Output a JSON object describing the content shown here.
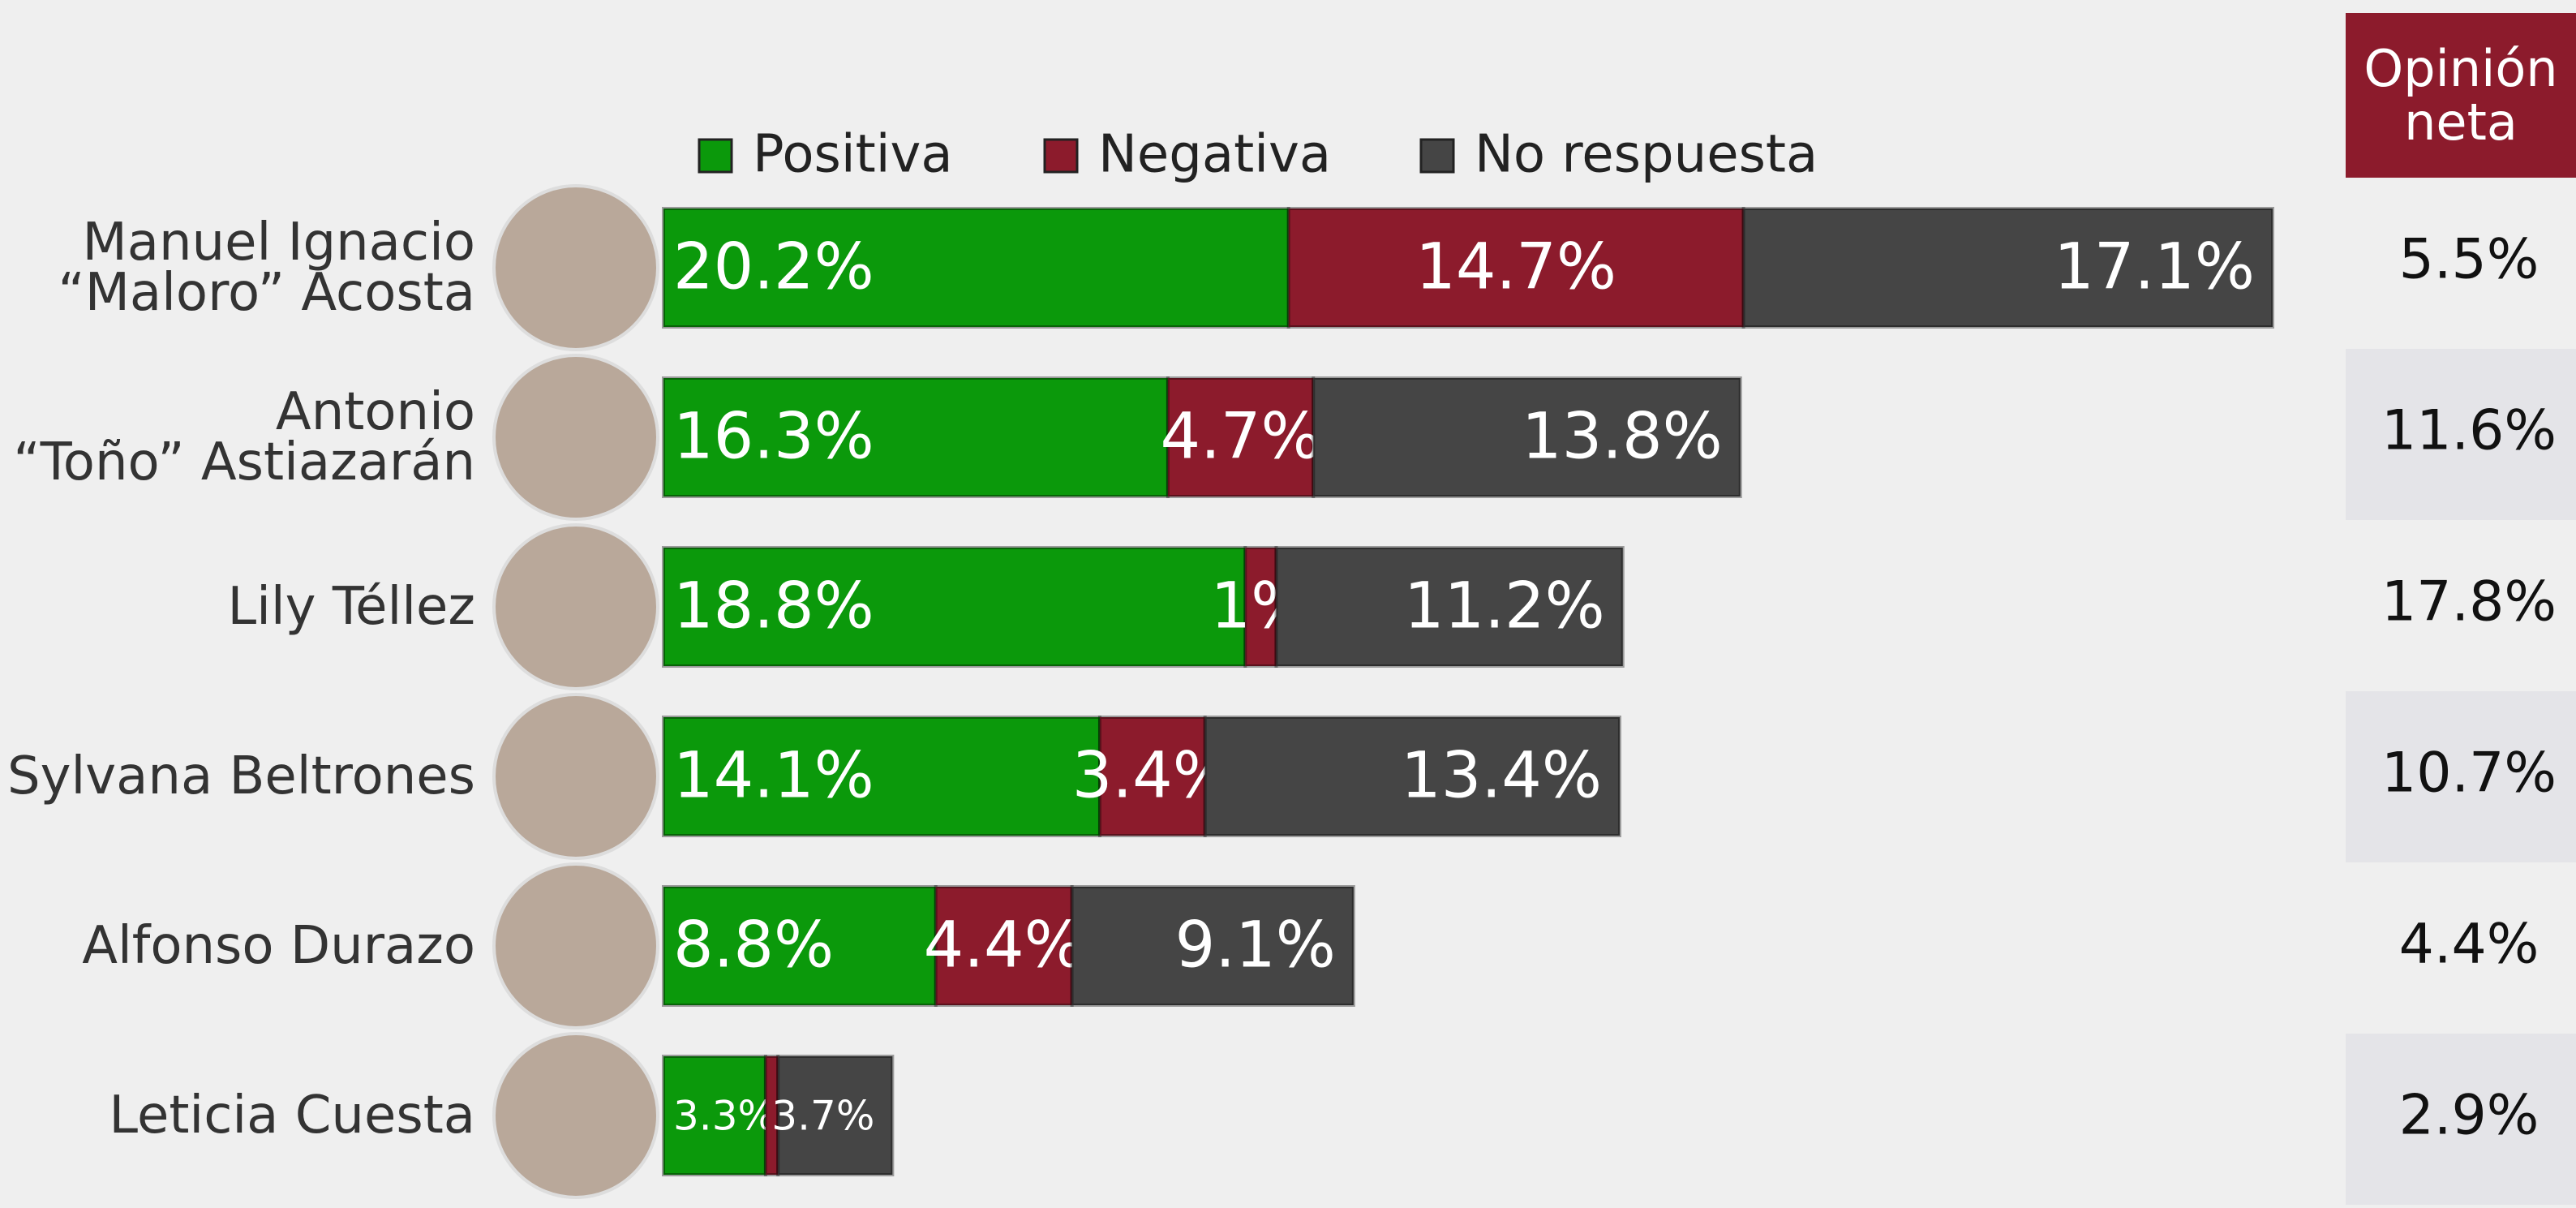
{
  "chart_data": {
    "type": "stacked_barh",
    "categories": [
      "Manuel Ignacio\n“Maloro” Acosta",
      "Antonio\n“Toño” Astiazarán",
      "Lily Téllez",
      "Sylvana Beltrones",
      "Alfonso Durazo",
      "Leticia Cuesta"
    ],
    "series": [
      {
        "name": "Positiva",
        "color": "#0b990b",
        "values": [
          20.2,
          16.3,
          18.8,
          14.1,
          8.8,
          3.3
        ],
        "value_labels": [
          "20.2%",
          "16.3%",
          "18.8%",
          "14.1%",
          "8.8%",
          "3.3%"
        ]
      },
      {
        "name": "Negativa",
        "color": "#8c1b2c",
        "values": [
          14.7,
          4.7,
          1,
          3.4,
          4.4,
          0.4
        ],
        "value_labels": [
          "14.7%",
          "4.7%",
          "1%",
          "3.4%",
          "4.4%",
          null
        ]
      },
      {
        "name": "No respuesta",
        "color": "#454545",
        "values": [
          17.1,
          13.8,
          11.2,
          13.4,
          9.1,
          3.7
        ],
        "value_labels": [
          "17.1%",
          "13.8%",
          "11.2%",
          "13.4%",
          "9.1%",
          "3.7%"
        ]
      }
    ],
    "net_opinion": {
      "title": "Opinión neta",
      "color": "#8c1b2c",
      "values": [
        5.5,
        11.6,
        17.8,
        10.7,
        4.4,
        2.9
      ],
      "value_labels": [
        "5.5%",
        "11.6%",
        "17.8%",
        "10.7%",
        "4.4%",
        "2.9%"
      ]
    }
  }
}
